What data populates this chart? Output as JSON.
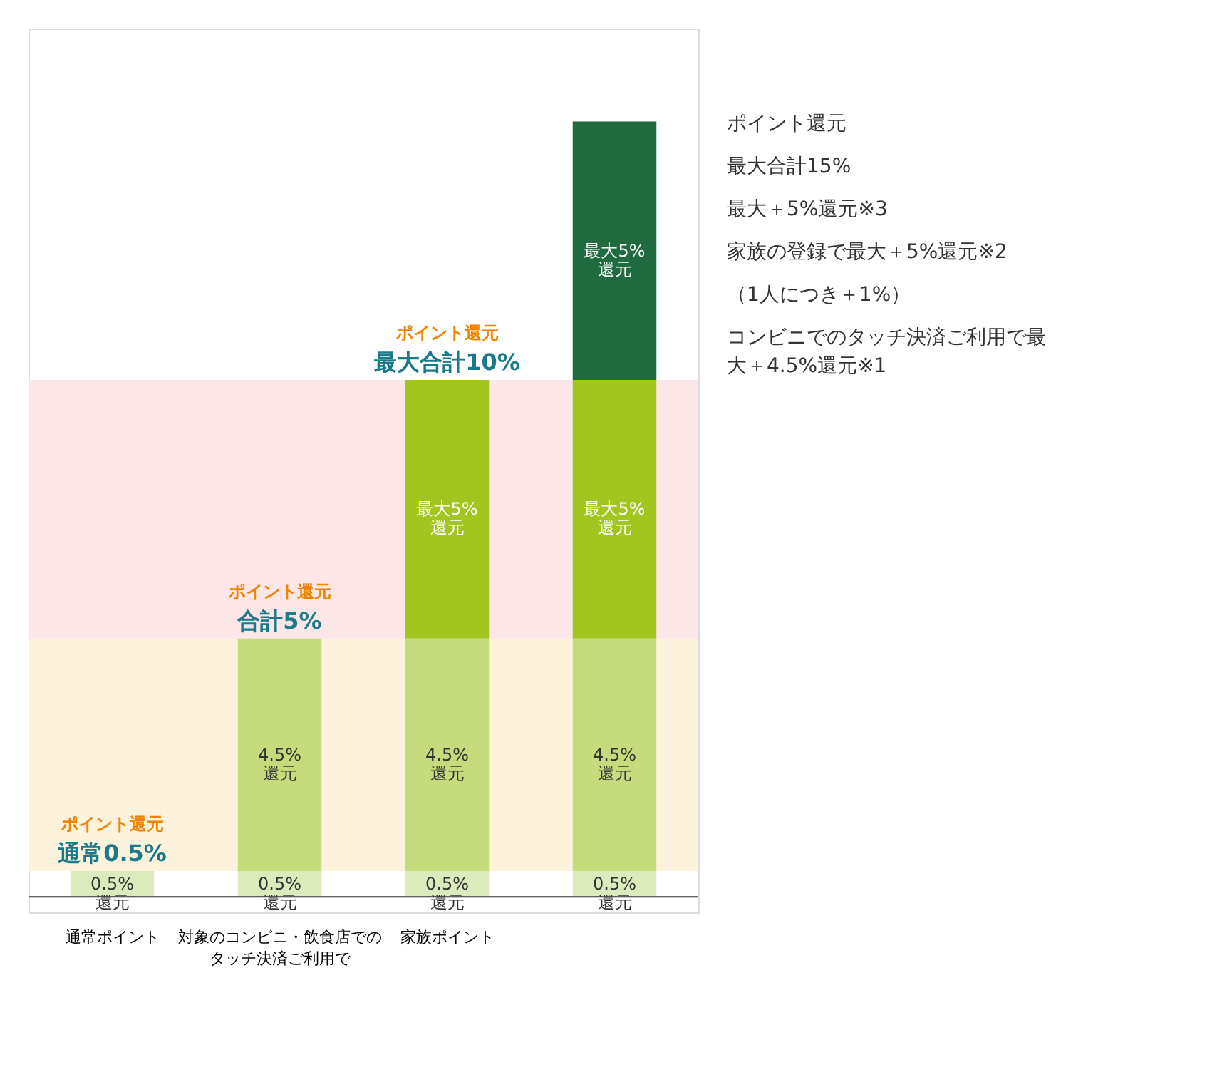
{
  "chart_data": {
    "type": "bar",
    "stacked": true,
    "categories": [
      "通常ポイント",
      "対象のコンビニ・飲食店でのタッチ決済ご利用で",
      "家族ポイント",
      null
    ],
    "series": [
      {
        "color": "#dcebbc",
        "values": [
          0.5,
          0.5,
          0.5,
          0.5
        ],
        "value_labels": [
          "0.5%還元",
          "0.5%還元",
          "0.5%還元",
          "0.5%還元"
        ]
      },
      {
        "color": "#c6dc7c",
        "values": [
          null,
          4.5,
          4.5,
          4.5
        ],
        "value_labels": [
          null,
          "4.5%還元",
          "4.5%還元",
          "4.5%還元"
        ]
      },
      {
        "color": "#a3c520",
        "values": [
          null,
          null,
          5,
          5
        ],
        "value_labels": [
          null,
          null,
          "最大5%還元",
          "最大5%還元"
        ]
      },
      {
        "color": "#1f6b3f",
        "values": [
          null,
          null,
          null,
          5
        ],
        "value_labels": [
          null,
          null,
          null,
          "最大5%還元"
        ]
      }
    ],
    "bands": [
      {
        "axis": "y",
        "from": 0.5,
        "to": 5,
        "color": "#fdf3dc"
      },
      {
        "axis": "y",
        "from": 5,
        "to": 10,
        "color": "#fde6e8"
      }
    ],
    "annotations": [
      {
        "text": "ポイント還元",
        "x": "通常ポイント",
        "y": 0.5
      },
      {
        "text": "通常0.5%",
        "x": "通常ポイント",
        "y": 0.5
      },
      {
        "text": "ポイント還元",
        "x": "対象のコンビニ・飲食店でのタッチ決済ご利用で",
        "y": 5
      },
      {
        "text": "合計5%",
        "x": "対象のコンビニ・飲食店でのタッチ決済ご利用で",
        "y": 5
      },
      {
        "text": "ポイント還元",
        "x": "家族ポイント",
        "y": 10
      },
      {
        "text": "最大合計10%",
        "x": "家族ポイント",
        "y": 10
      },
      "ポイント還元",
      "最大合計15%",
      "最大＋5%還元※3",
      "家族の登録で最大＋5%還元※2",
      "（1人につき＋1%）",
      "コンビニでのタッチ決済ご利用で最大＋4.5%還元※1"
    ]
  }
}
